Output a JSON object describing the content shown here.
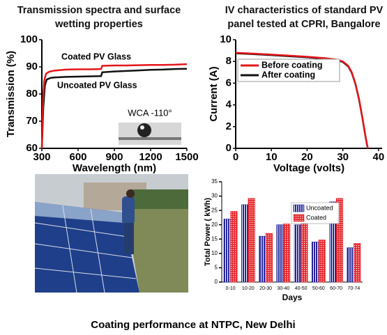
{
  "chart_data": [
    {
      "type": "line",
      "title": "Transmission spectra and surface wetting properties",
      "x_label": "Wavelength (nm)",
      "y_label": "Transmission (%)",
      "xlim": [
        300,
        1500
      ],
      "xticks": [
        300,
        600,
        900,
        1200,
        1500
      ],
      "ylim": [
        60,
        100
      ],
      "yticks": [
        60,
        70,
        80,
        90,
        100
      ],
      "annotation": "WCA -110°",
      "series": [
        {
          "name": "Coated PV  Glass",
          "color": "#e3161b",
          "x": [
            300,
            310,
            320,
            335,
            360,
            400,
            500,
            600,
            700,
            790,
            800,
            900,
            1000,
            1100,
            1200,
            1300,
            1400,
            1500
          ],
          "values": [
            60,
            78,
            85,
            87.5,
            88.2,
            88.6,
            89,
            89.1,
            89.1,
            89.2,
            90.4,
            90.5,
            90.5,
            90.6,
            90.7,
            90.7,
            90.8,
            91
          ]
        },
        {
          "name": "Uncoated PV  Glass",
          "color": "#111111",
          "x": [
            300,
            312,
            325,
            340,
            370,
            400,
            500,
            600,
            700,
            790,
            800,
            900,
            1000,
            1100,
            1200,
            1300,
            1400,
            1500
          ],
          "values": [
            60,
            75,
            83,
            85.3,
            85.9,
            86.1,
            86.3,
            86.4,
            86.5,
            86.6,
            88,
            88.3,
            88.5,
            88.7,
            88.9,
            89,
            89.2,
            89.3
          ]
        }
      ]
    },
    {
      "type": "line",
      "title": "IV characteristics of standard PV panel tested at CPRI, Bangalore",
      "x_label": "Voltage (volts)",
      "y_label": "Current (A)",
      "xlim": [
        0,
        41
      ],
      "xticks": [
        0,
        10,
        20,
        30,
        40
      ],
      "ylim": [
        0,
        10
      ],
      "yticks": [
        0,
        2,
        4,
        6,
        8,
        10
      ],
      "legend": "center right",
      "series": [
        {
          "name": "Before coating",
          "color": "#e3161b",
          "x": [
            0,
            5,
            10,
            15,
            20,
            25,
            28,
            30,
            31.5,
            32.5,
            33.5,
            34.5,
            35.5,
            36.2,
            36.7,
            37
          ],
          "values": [
            8.8,
            8.72,
            8.63,
            8.53,
            8.43,
            8.3,
            8.18,
            8.0,
            7.6,
            7.0,
            6.0,
            4.6,
            2.8,
            1.4,
            0.5,
            0
          ]
        },
        {
          "name": "After coating",
          "color": "#111111",
          "x": [
            0,
            5,
            10,
            15,
            20,
            25,
            28,
            30,
            31.5,
            32.5,
            33.5,
            34.5,
            35.5,
            36.2,
            36.7,
            37
          ],
          "values": [
            8.75,
            8.67,
            8.58,
            8.48,
            8.38,
            8.25,
            8.13,
            7.95,
            7.55,
            6.95,
            5.95,
            4.55,
            2.75,
            1.35,
            0.45,
            0
          ]
        }
      ]
    },
    {
      "type": "bar",
      "x_label": "Days",
      "y_label": "Total Power ( kWh)",
      "categories": [
        "0-10",
        "10-20",
        "20-30",
        "30-40",
        "40-50",
        "50-60",
        "60-70",
        "70-74"
      ],
      "ylim": [
        0,
        35
      ],
      "yticks": [
        0,
        5,
        10,
        15,
        20,
        25,
        30,
        35
      ],
      "legend": "upper right",
      "series": [
        {
          "name": "Uncoated",
          "color": "#23239a",
          "values": [
            22,
            27,
            16,
            20,
            20,
            14,
            28,
            12
          ]
        },
        {
          "name": "Coated",
          "color": "#e8262a",
          "values": [
            24.7,
            29.2,
            17,
            20.3,
            22.5,
            14.7,
            29.2,
            13.5
          ]
        }
      ]
    }
  ],
  "caption": "Coating performance at NTPC, New Delhi"
}
